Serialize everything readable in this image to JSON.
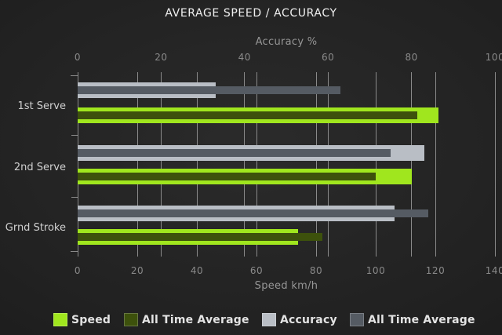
{
  "chart_data": {
    "type": "bar",
    "orientation": "horizontal",
    "title": "AVERAGE SPEED / ACCURACY",
    "categories": [
      "1st Serve",
      "2nd Serve",
      "Grnd Stroke"
    ],
    "axes": {
      "top": {
        "label": "Accuracy %",
        "min": 0,
        "max": 100,
        "ticks": [
          0,
          20,
          40,
          60,
          80,
          100
        ]
      },
      "bottom": {
        "label": "Speed km/h",
        "min": 0,
        "max": 140,
        "ticks": [
          0,
          20,
          40,
          60,
          80,
          100,
          120,
          140
        ]
      }
    },
    "series": [
      {
        "name": "Speed",
        "axis": "bottom",
        "overlay": false,
        "color": "#a0e61e",
        "values": [
          121,
          112,
          74
        ]
      },
      {
        "name": "All Time Average",
        "axis": "bottom",
        "overlay": true,
        "color": "#3d510c",
        "values": [
          114,
          100,
          82
        ]
      },
      {
        "name": "Accuracy",
        "axis": "top",
        "overlay": false,
        "color": "#b9bec5",
        "values": [
          33,
          83,
          76
        ]
      },
      {
        "name": "All Time Average",
        "axis": "top",
        "overlay": true,
        "color": "#555b63",
        "values": [
          63,
          75,
          84
        ]
      }
    ],
    "legend_position": "bottom",
    "grid": true,
    "colors": {
      "background_center": "#2b2b2b",
      "background_mid": "#212121",
      "background_edge": "#151515",
      "gridline": "#8a8a8a",
      "title_text": "#f0f0f0",
      "axis_text": "#969696",
      "tick_text": "#8a8a8a",
      "category_text": "#d0d0d0",
      "legend_text": "#e3e3e3"
    }
  }
}
